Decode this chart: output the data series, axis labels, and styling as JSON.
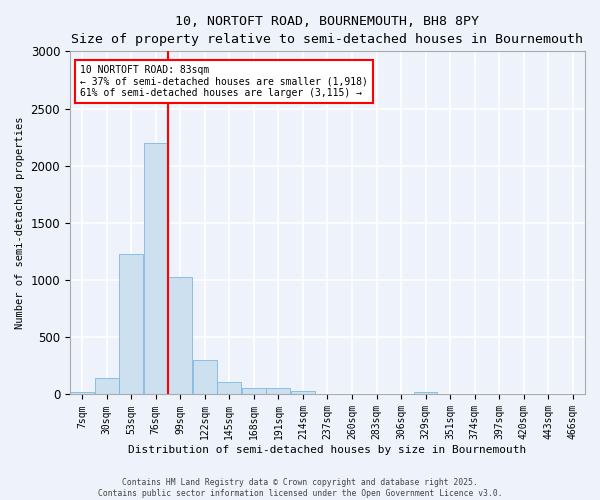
{
  "title": "10, NORTOFT ROAD, BOURNEMOUTH, BH8 8PY",
  "subtitle": "Size of property relative to semi-detached houses in Bournemouth",
  "xlabel": "Distribution of semi-detached houses by size in Bournemouth",
  "ylabel": "Number of semi-detached properties",
  "bin_labels": [
    "7sqm",
    "30sqm",
    "53sqm",
    "76sqm",
    "99sqm",
    "122sqm",
    "145sqm",
    "168sqm",
    "191sqm",
    "214sqm",
    "237sqm",
    "260sqm",
    "283sqm",
    "306sqm",
    "329sqm",
    "351sqm",
    "374sqm",
    "397sqm",
    "420sqm",
    "443sqm",
    "466sqm"
  ],
  "bar_heights": [
    20,
    145,
    1230,
    2200,
    1030,
    300,
    105,
    55,
    60,
    30,
    5,
    0,
    0,
    0,
    20,
    0,
    0,
    0,
    0,
    0,
    0
  ],
  "bar_color": "#cce0f0",
  "bar_edge_color": "#7fb8e0",
  "red_line_bin": 3,
  "annotation_text_line1": "10 NORTOFT ROAD: 83sqm",
  "annotation_text_line2": "← 37% of semi-detached houses are smaller (1,918)",
  "annotation_text_line3": "61% of semi-detached houses are larger (3,115) →",
  "ylim": [
    0,
    3000
  ],
  "yticks": [
    0,
    500,
    1000,
    1500,
    2000,
    2500,
    3000
  ],
  "background_color": "#eef2fa",
  "grid_color": "#ffffff",
  "footer_line1": "Contains HM Land Registry data © Crown copyright and database right 2025.",
  "footer_line2": "Contains public sector information licensed under the Open Government Licence v3.0."
}
